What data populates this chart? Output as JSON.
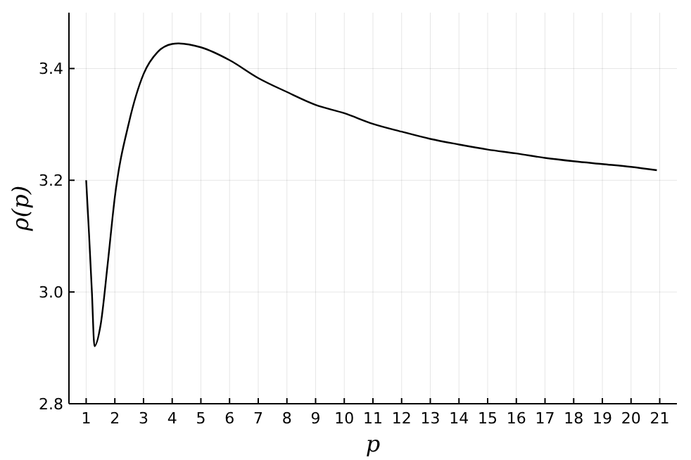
{
  "chart_data": {
    "type": "line",
    "xlabel": "p",
    "ylabel": "ρ(p)",
    "xlim": [
      0.4,
      21.6
    ],
    "xticks": [
      1,
      2,
      3,
      4,
      5,
      6,
      7,
      8,
      9,
      10,
      11,
      12,
      13,
      14,
      15,
      16,
      17,
      18,
      19,
      20,
      21
    ],
    "ylim": [
      2.8,
      3.5
    ],
    "yticks": [
      2.8,
      {
        "value": 3,
        "label": "3.0"
      },
      3.2,
      3.4
    ],
    "grid": true,
    "series": [
      {
        "color": "#000000",
        "x": [
          1,
          1.1,
          1.2,
          1.29,
          1.5,
          1.75,
          2,
          2.5,
          3,
          3.5,
          4,
          4.2,
          5,
          6,
          7,
          8,
          9,
          10,
          11,
          12,
          13,
          14,
          15,
          16,
          17,
          18,
          19,
          20,
          20.9
        ],
        "values": [
          3.2,
          3.104,
          3.0,
          2.903,
          2.94,
          3.05,
          3.17,
          3.305,
          3.39,
          3.43,
          3.444,
          3.445,
          3.438,
          3.415,
          3.383,
          3.358,
          3.335,
          3.32,
          3.301,
          3.287,
          3.274,
          3.264,
          3.255,
          3.248,
          3.24,
          3.234,
          3.229,
          3.224,
          3.218
        ]
      }
    ]
  }
}
